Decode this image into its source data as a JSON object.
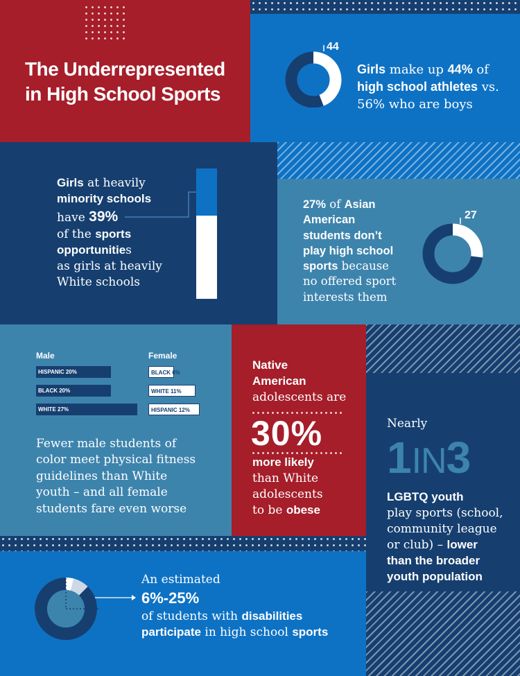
{
  "title_line1": "The Underrepresented",
  "title_line2": "in High School Sports",
  "girls": {
    "value": 44,
    "label": "44",
    "t1": "Girls",
    "t2": " make up ",
    "t3": "44%",
    "t4": " of",
    "t5": "high school athletes",
    "t6": " vs.",
    "t7": "56% who are boys"
  },
  "minority": {
    "fraction": 0.39,
    "w1": "Girls",
    "w2": " at heavily",
    "w3": "minority schools",
    "w4": "have ",
    "w5": "39%",
    "w6": "of the ",
    "w7": "sports",
    "w8": "opportunitie",
    "w8b": "s",
    "w9": "as girls at heavily",
    "w10": "White schools"
  },
  "asian": {
    "value": 27,
    "label": "27",
    "a1": "27%",
    "a2": " of ",
    "a3": "Asian",
    "a4": "American",
    "a5": "students don’t",
    "a6": "play high school",
    "a7": "sports",
    "a8": " because",
    "a9": "no offered sport",
    "a10": "interests them"
  },
  "fitness": {
    "male_header": "Male",
    "female_header": "Female",
    "male_bars": [
      {
        "label": "HISPANIC 20%",
        "value": 20
      },
      {
        "label": "BLACK 20%",
        "value": 20
      },
      {
        "label": "WHITE 27%",
        "value": 27
      }
    ],
    "female_bars": [
      {
        "label": "BLACK 6%",
        "value": 6
      },
      {
        "label": "WHITE 11%",
        "value": 11
      },
      {
        "label": "HISPANIC 12%",
        "value": 12
      }
    ],
    "caption_lines": [
      "Fewer male students of",
      "color meet physical fitness",
      "guidelines than White",
      "youth – and all female",
      "students fare even worse"
    ]
  },
  "native": {
    "n1": "Native",
    "n2": "American",
    "n3": "adolescents are",
    "n4": "30%",
    "n5": "more likely",
    "n6": "than White",
    "n7": "adolescents",
    "n8": "to be ",
    "n9": "obese"
  },
  "lgbtq": {
    "l1": "Nearly",
    "big1": "1",
    "big2": "IN",
    "big3": "3",
    "l2": "LGBTQ youth",
    "l3": "play sports (school,",
    "l4": "community league",
    "l5": "or club) – ",
    "l6": "lower",
    "l7": "than the broader",
    "l8": "youth population"
  },
  "disability": {
    "d1": "An estimated",
    "d2": "6%-25%",
    "d3": "of students with ",
    "d4": "disabilities",
    "d5": "participate",
    "d6": " in high school ",
    "d7": "sports"
  },
  "colors": {
    "red": "#a51e2a",
    "bright_blue": "#0e72c4",
    "navy": "#163f70",
    "steel": "#3d84ad",
    "light": "#e8edf2"
  }
}
